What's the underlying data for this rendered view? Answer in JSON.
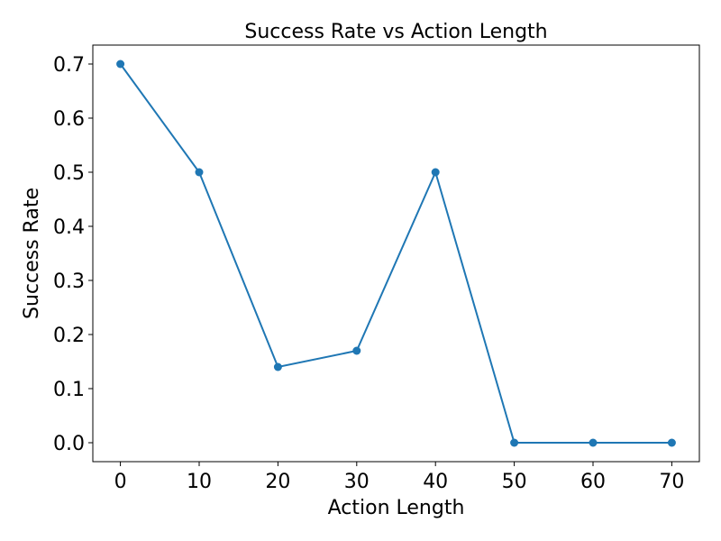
{
  "chart_data": {
    "type": "line",
    "title": "Success Rate vs Action Length",
    "xlabel": "Action Length",
    "ylabel": "Success Rate",
    "xlim": [
      -3.5,
      73.5
    ],
    "ylim": [
      -0.035,
      0.735
    ],
    "xticks": [
      0,
      10,
      20,
      30,
      40,
      50,
      60,
      70
    ],
    "xtick_labels": [
      "0",
      "10",
      "20",
      "30",
      "40",
      "50",
      "60",
      "70"
    ],
    "yticks": [
      0.0,
      0.1,
      0.2,
      0.3,
      0.4,
      0.5,
      0.6,
      0.7
    ],
    "ytick_labels": [
      "0.0",
      "0.1",
      "0.2",
      "0.3",
      "0.4",
      "0.5",
      "0.6",
      "0.7"
    ],
    "grid": false,
    "series": [
      {
        "color": "#1f77b4",
        "marker": "circle",
        "x": [
          0,
          10,
          20,
          30,
          40,
          50,
          60,
          70
        ],
        "y": [
          0.7,
          0.5,
          0.14,
          0.17,
          0.5,
          0.0,
          0.0,
          0.0
        ]
      }
    ]
  }
}
